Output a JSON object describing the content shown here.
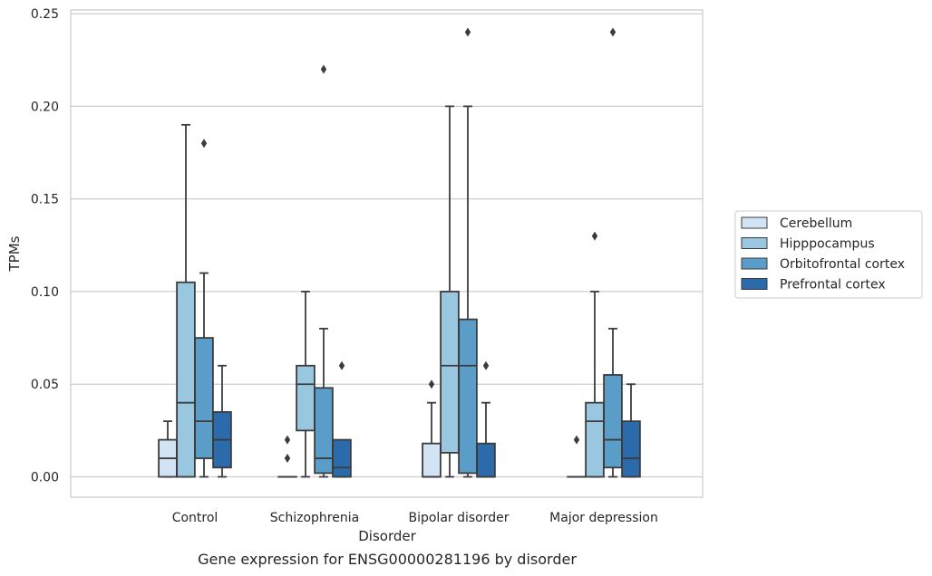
{
  "chart_data": {
    "type": "boxplot",
    "title": "Gene expression for ENSG00000281196 by disorder",
    "xlabel": "Disorder",
    "ylabel": "TPMs",
    "ylim": [
      -0.011,
      0.252
    ],
    "yticks": [
      0.0,
      0.05,
      0.1,
      0.15,
      0.2,
      0.25
    ],
    "ytick_labels": [
      "0.00",
      "0.05",
      "0.10",
      "0.15",
      "0.20",
      "0.25"
    ],
    "grid": "horizontal",
    "legend_position": "right",
    "categories": [
      "Control",
      "Schizophrenia",
      "Bipolar disorder",
      "Major depression"
    ],
    "series": [
      {
        "name": "Cerebellum",
        "color": "#d2e3f3",
        "boxes": [
          {
            "whisker_low": 0.0,
            "q1": 0.0,
            "median": 0.01,
            "q3": 0.02,
            "whisker_high": 0.03,
            "outliers": []
          },
          {
            "whisker_low": 0.0,
            "q1": 0.0,
            "median": 0.0,
            "q3": 0.0,
            "whisker_high": 0.0,
            "outliers": [
              0.01,
              0.02
            ]
          },
          {
            "whisker_low": 0.0,
            "q1": 0.0,
            "median": 0.0,
            "q3": 0.018,
            "whisker_high": 0.04,
            "outliers": [
              0.05
            ]
          },
          {
            "whisker_low": 0.0,
            "q1": 0.0,
            "median": 0.0,
            "q3": 0.0,
            "whisker_high": 0.0,
            "outliers": [
              0.02
            ]
          }
        ]
      },
      {
        "name": "Hipppocampus",
        "color": "#9ac7e0",
        "boxes": [
          {
            "whisker_low": 0.0,
            "q1": 0.0,
            "median": 0.04,
            "q3": 0.105,
            "whisker_high": 0.19,
            "outliers": []
          },
          {
            "whisker_low": 0.0,
            "q1": 0.025,
            "median": 0.05,
            "q3": 0.06,
            "whisker_high": 0.1,
            "outliers": []
          },
          {
            "whisker_low": 0.0,
            "q1": 0.013,
            "median": 0.06,
            "q3": 0.1,
            "whisker_high": 0.2,
            "outliers": []
          },
          {
            "whisker_low": 0.0,
            "q1": 0.0,
            "median": 0.03,
            "q3": 0.04,
            "whisker_high": 0.1,
            "outliers": [
              0.13
            ]
          }
        ]
      },
      {
        "name": "Orbitofrontal cortex",
        "color": "#5a9dc9",
        "boxes": [
          {
            "whisker_low": 0.0,
            "q1": 0.01,
            "median": 0.03,
            "q3": 0.075,
            "whisker_high": 0.11,
            "outliers": [
              0.18
            ]
          },
          {
            "whisker_low": 0.0,
            "q1": 0.002,
            "median": 0.01,
            "q3": 0.048,
            "whisker_high": 0.08,
            "outliers": [
              0.22
            ]
          },
          {
            "whisker_low": 0.0,
            "q1": 0.002,
            "median": 0.06,
            "q3": 0.085,
            "whisker_high": 0.2,
            "outliers": [
              0.24
            ]
          },
          {
            "whisker_low": 0.0,
            "q1": 0.005,
            "median": 0.02,
            "q3": 0.055,
            "whisker_high": 0.08,
            "outliers": [
              0.24
            ]
          }
        ]
      },
      {
        "name": "Prefrontal cortex",
        "color": "#2b6aab",
        "boxes": [
          {
            "whisker_low": 0.0,
            "q1": 0.005,
            "median": 0.02,
            "q3": 0.035,
            "whisker_high": 0.06,
            "outliers": []
          },
          {
            "whisker_low": 0.0,
            "q1": 0.0,
            "median": 0.005,
            "q3": 0.02,
            "whisker_high": 0.02,
            "outliers": [
              0.06
            ]
          },
          {
            "whisker_low": 0.0,
            "q1": 0.0,
            "median": 0.0,
            "q3": 0.018,
            "whisker_high": 0.04,
            "outliers": [
              0.06
            ]
          },
          {
            "whisker_low": 0.0,
            "q1": 0.0,
            "median": 0.01,
            "q3": 0.03,
            "whisker_high": 0.05,
            "outliers": []
          }
        ]
      }
    ]
  }
}
